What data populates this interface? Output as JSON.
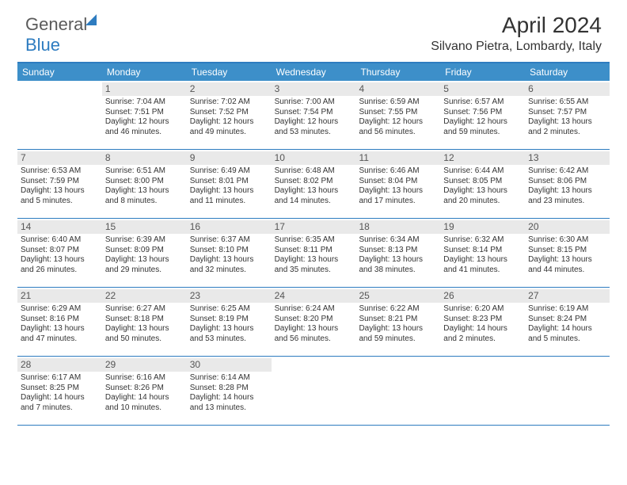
{
  "brand": {
    "part1": "General",
    "part2": "Blue"
  },
  "header": {
    "month": "April 2024",
    "location": "Silvano Pietra, Lombardy, Italy"
  },
  "colors": {
    "accent": "#3d8fc9",
    "rule": "#2e7cc0",
    "daybg": "#e9e9e9"
  },
  "day_names": [
    "Sunday",
    "Monday",
    "Tuesday",
    "Wednesday",
    "Thursday",
    "Friday",
    "Saturday"
  ],
  "weeks": [
    [
      null,
      {
        "n": "1",
        "sr": "7:04 AM",
        "ss": "7:51 PM",
        "dl": "12 hours and 46 minutes."
      },
      {
        "n": "2",
        "sr": "7:02 AM",
        "ss": "7:52 PM",
        "dl": "12 hours and 49 minutes."
      },
      {
        "n": "3",
        "sr": "7:00 AM",
        "ss": "7:54 PM",
        "dl": "12 hours and 53 minutes."
      },
      {
        "n": "4",
        "sr": "6:59 AM",
        "ss": "7:55 PM",
        "dl": "12 hours and 56 minutes."
      },
      {
        "n": "5",
        "sr": "6:57 AM",
        "ss": "7:56 PM",
        "dl": "12 hours and 59 minutes."
      },
      {
        "n": "6",
        "sr": "6:55 AM",
        "ss": "7:57 PM",
        "dl": "13 hours and 2 minutes."
      }
    ],
    [
      {
        "n": "7",
        "sr": "6:53 AM",
        "ss": "7:59 PM",
        "dl": "13 hours and 5 minutes."
      },
      {
        "n": "8",
        "sr": "6:51 AM",
        "ss": "8:00 PM",
        "dl": "13 hours and 8 minutes."
      },
      {
        "n": "9",
        "sr": "6:49 AM",
        "ss": "8:01 PM",
        "dl": "13 hours and 11 minutes."
      },
      {
        "n": "10",
        "sr": "6:48 AM",
        "ss": "8:02 PM",
        "dl": "13 hours and 14 minutes."
      },
      {
        "n": "11",
        "sr": "6:46 AM",
        "ss": "8:04 PM",
        "dl": "13 hours and 17 minutes."
      },
      {
        "n": "12",
        "sr": "6:44 AM",
        "ss": "8:05 PM",
        "dl": "13 hours and 20 minutes."
      },
      {
        "n": "13",
        "sr": "6:42 AM",
        "ss": "8:06 PM",
        "dl": "13 hours and 23 minutes."
      }
    ],
    [
      {
        "n": "14",
        "sr": "6:40 AM",
        "ss": "8:07 PM",
        "dl": "13 hours and 26 minutes."
      },
      {
        "n": "15",
        "sr": "6:39 AM",
        "ss": "8:09 PM",
        "dl": "13 hours and 29 minutes."
      },
      {
        "n": "16",
        "sr": "6:37 AM",
        "ss": "8:10 PM",
        "dl": "13 hours and 32 minutes."
      },
      {
        "n": "17",
        "sr": "6:35 AM",
        "ss": "8:11 PM",
        "dl": "13 hours and 35 minutes."
      },
      {
        "n": "18",
        "sr": "6:34 AM",
        "ss": "8:13 PM",
        "dl": "13 hours and 38 minutes."
      },
      {
        "n": "19",
        "sr": "6:32 AM",
        "ss": "8:14 PM",
        "dl": "13 hours and 41 minutes."
      },
      {
        "n": "20",
        "sr": "6:30 AM",
        "ss": "8:15 PM",
        "dl": "13 hours and 44 minutes."
      }
    ],
    [
      {
        "n": "21",
        "sr": "6:29 AM",
        "ss": "8:16 PM",
        "dl": "13 hours and 47 minutes."
      },
      {
        "n": "22",
        "sr": "6:27 AM",
        "ss": "8:18 PM",
        "dl": "13 hours and 50 minutes."
      },
      {
        "n": "23",
        "sr": "6:25 AM",
        "ss": "8:19 PM",
        "dl": "13 hours and 53 minutes."
      },
      {
        "n": "24",
        "sr": "6:24 AM",
        "ss": "8:20 PM",
        "dl": "13 hours and 56 minutes."
      },
      {
        "n": "25",
        "sr": "6:22 AM",
        "ss": "8:21 PM",
        "dl": "13 hours and 59 minutes."
      },
      {
        "n": "26",
        "sr": "6:20 AM",
        "ss": "8:23 PM",
        "dl": "14 hours and 2 minutes."
      },
      {
        "n": "27",
        "sr": "6:19 AM",
        "ss": "8:24 PM",
        "dl": "14 hours and 5 minutes."
      }
    ],
    [
      {
        "n": "28",
        "sr": "6:17 AM",
        "ss": "8:25 PM",
        "dl": "14 hours and 7 minutes."
      },
      {
        "n": "29",
        "sr": "6:16 AM",
        "ss": "8:26 PM",
        "dl": "14 hours and 10 minutes."
      },
      {
        "n": "30",
        "sr": "6:14 AM",
        "ss": "8:28 PM",
        "dl": "14 hours and 13 minutes."
      },
      null,
      null,
      null,
      null
    ]
  ],
  "labels": {
    "sunrise": "Sunrise: ",
    "sunset": "Sunset: ",
    "daylight": "Daylight: "
  }
}
